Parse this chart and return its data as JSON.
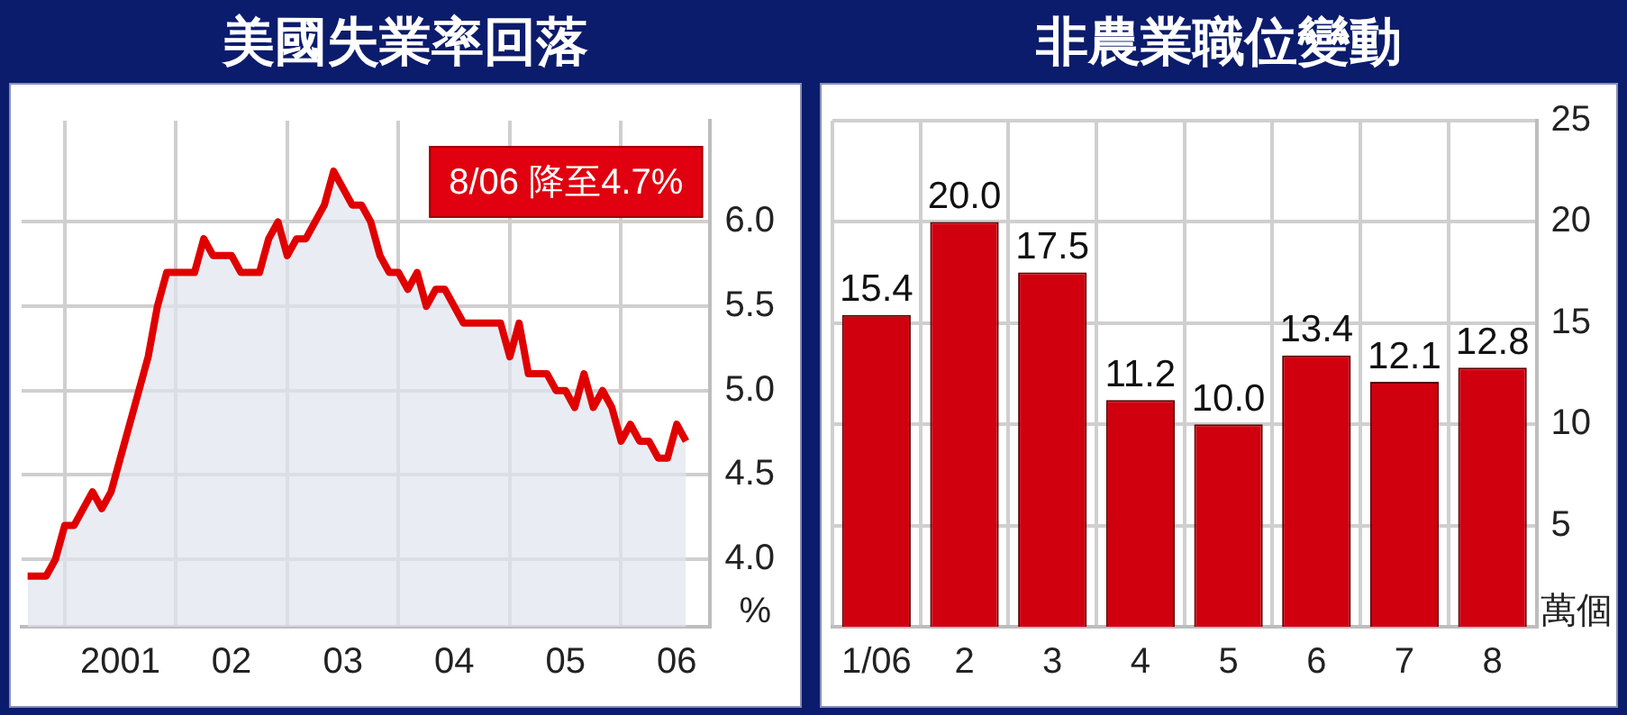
{
  "chart_data": [
    {
      "type": "area",
      "title": "美國失業率回落",
      "ylabel": "%",
      "x": [
        "2000-09",
        "2000-10",
        "2000-11",
        "2000-12",
        "2001-01",
        "2001-02",
        "2001-03",
        "2001-04",
        "2001-05",
        "2001-06",
        "2001-07",
        "2001-08",
        "2001-09",
        "2001-10",
        "2001-11",
        "2001-12",
        "2002-01",
        "2002-02",
        "2002-03",
        "2002-04",
        "2002-05",
        "2002-06",
        "2002-07",
        "2002-08",
        "2002-09",
        "2002-10",
        "2002-11",
        "2002-12",
        "2003-01",
        "2003-02",
        "2003-03",
        "2003-04",
        "2003-05",
        "2003-06",
        "2003-07",
        "2003-08",
        "2003-09",
        "2003-10",
        "2003-11",
        "2003-12",
        "2004-01",
        "2004-02",
        "2004-03",
        "2004-04",
        "2004-05",
        "2004-06",
        "2004-07",
        "2004-08",
        "2004-09",
        "2004-10",
        "2004-11",
        "2004-12",
        "2005-01",
        "2005-02",
        "2005-03",
        "2005-04",
        "2005-05",
        "2005-06",
        "2005-07",
        "2005-08",
        "2005-09",
        "2005-10",
        "2005-11",
        "2005-12",
        "2006-01",
        "2006-02",
        "2006-03",
        "2006-04",
        "2006-05",
        "2006-06",
        "2006-07",
        "2006-08"
      ],
      "series": [
        {
          "color": "#e00000",
          "values": [
            3.9,
            3.9,
            3.9,
            4.0,
            4.2,
            4.2,
            4.3,
            4.4,
            4.3,
            4.4,
            4.6,
            4.8,
            5.0,
            5.2,
            5.5,
            5.7,
            5.7,
            5.7,
            5.7,
            5.9,
            5.8,
            5.8,
            5.8,
            5.7,
            5.7,
            5.7,
            5.9,
            6.0,
            5.8,
            5.9,
            5.9,
            6.0,
            6.1,
            6.3,
            6.2,
            6.1,
            6.1,
            6.0,
            5.8,
            5.7,
            5.7,
            5.6,
            5.7,
            5.5,
            5.6,
            5.6,
            5.5,
            5.4,
            5.4,
            5.4,
            5.4,
            5.4,
            5.2,
            5.4,
            5.1,
            5.1,
            5.1,
            5.0,
            5.0,
            4.9,
            5.1,
            4.9,
            5.0,
            4.9,
            4.7,
            4.8,
            4.7,
            4.7,
            4.6,
            4.6,
            4.8,
            4.7
          ]
        }
      ],
      "xlim": [
        "2000-08-12",
        "2006-10-20"
      ],
      "xticks": [
        {
          "value": "2001-01",
          "label": null
        },
        {
          "value": "2001-07",
          "label": "2001"
        },
        {
          "value": "2002-01",
          "label": null
        },
        {
          "value": "2002-07",
          "label": "02"
        },
        {
          "value": "2003-01",
          "label": null
        },
        {
          "value": "2003-07",
          "label": "03"
        },
        {
          "value": "2004-01",
          "label": null
        },
        {
          "value": "2004-07",
          "label": "04"
        },
        {
          "value": "2005-01",
          "label": null
        },
        {
          "value": "2005-07",
          "label": "05"
        },
        {
          "value": "2006-01",
          "label": null
        },
        {
          "value": "2006-07",
          "label": "06"
        }
      ],
      "ylim": [
        3.6,
        6.6
      ],
      "yticks": [
        {
          "value": 4,
          "label": "4.0"
        },
        {
          "value": 4.5,
          "label": "4.5"
        },
        {
          "value": 5,
          "label": "5.0"
        },
        {
          "value": 5.5,
          "label": "5.5"
        },
        {
          "value": 6,
          "label": "6.0"
        }
      ],
      "annotations": [
        "8/06 降至4.7%"
      ],
      "grid": true,
      "legend": false
    },
    {
      "type": "bar",
      "title": "非農業職位變動",
      "ylabel": "萬個",
      "categories": [
        "1/06",
        "2",
        "3",
        "4",
        "5",
        "6",
        "7",
        "8"
      ],
      "series": [
        {
          "color": "#d0000f",
          "values": [
            15.4,
            20.0,
            17.5,
            11.2,
            10.0,
            13.4,
            12.1,
            12.8
          ]
        }
      ],
      "value_labels": [
        "15.4",
        "20.0",
        "17.5",
        "11.2",
        "10.0",
        "13.4",
        "12.1",
        "12.8"
      ],
      "ylim": [
        0,
        25
      ],
      "yticks": [
        5,
        10,
        15,
        20,
        25
      ],
      "grid": true,
      "legend": false
    }
  ]
}
